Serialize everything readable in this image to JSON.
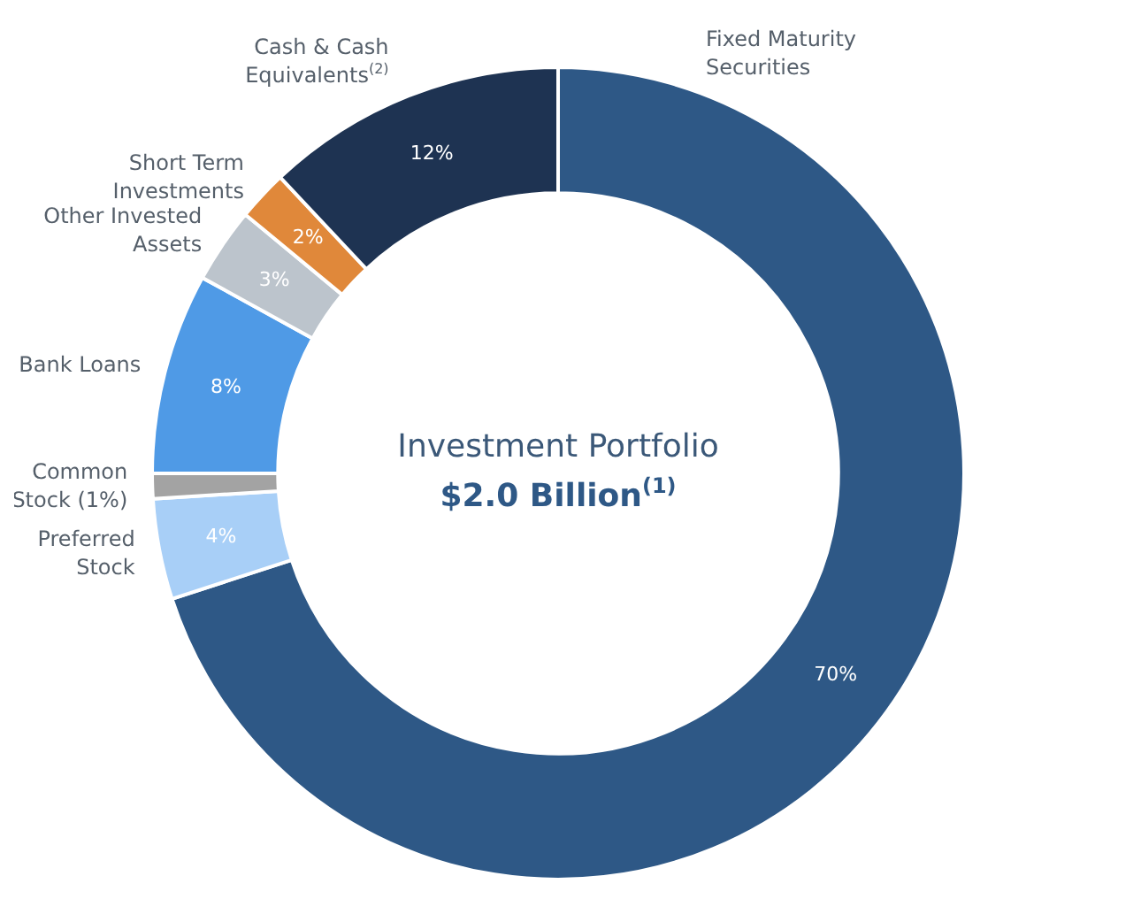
{
  "chart_data": {
    "type": "donut",
    "title": "Investment Portfolio",
    "subtitle": "$2.0 Billion$^{(1)}$",
    "categories": [
      "Fixed Maturity Securities",
      "Preferred Stock",
      "Common Stock (1%)",
      "Bank Loans",
      "Other Invested Assets",
      "Short Term Investments",
      "Cash & Cash Equivalents$^{(2)}$"
    ],
    "values": [
      70,
      4,
      1,
      8,
      3,
      2,
      12
    ],
    "colors": [
      "#2e5886",
      "#a8cff7",
      "#a3a3a3",
      "#4f9ae6",
      "#bcc4cc",
      "#e0883a",
      "#1e3352"
    ],
    "value_labels": [
      "70%",
      "4%",
      null,
      "8%",
      "3%",
      "2%",
      "12%"
    ]
  }
}
